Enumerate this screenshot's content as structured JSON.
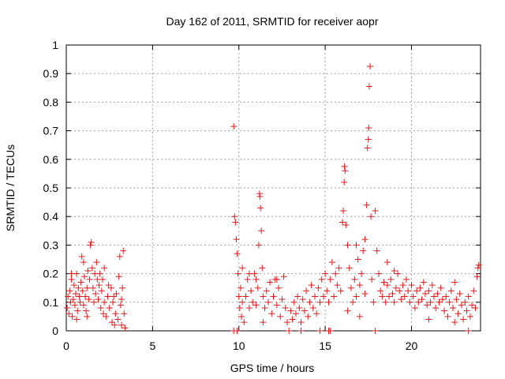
{
  "chart_data": {
    "type": "scatter",
    "title": "Day 162 of 2011, SRMTID for receiver aopr",
    "xlabel": "GPS time / hours",
    "ylabel": "SRMTID / TECUs",
    "xlim": [
      0,
      24
    ],
    "ylim": [
      0,
      1
    ],
    "xticks": [
      0,
      5,
      10,
      15,
      20
    ],
    "xtick_labels": [
      "0",
      "5",
      "10",
      "15",
      "20"
    ],
    "yticks": [
      0,
      0.1,
      0.2,
      0.3,
      0.4,
      0.5,
      0.6,
      0.7,
      0.8,
      0.9,
      1
    ],
    "ytick_labels": [
      "0",
      "0.1",
      "0.2",
      "0.3",
      "0.4",
      "0.5",
      "0.6",
      "0.7",
      "0.8",
      "0.9",
      "1"
    ],
    "grid": true,
    "marker": "+",
    "series": [
      {
        "name": "SRMTID",
        "color": "#e31a1c",
        "points": [
          [
            0.05,
            0.08
          ],
          [
            0.1,
            0.12
          ],
          [
            0.15,
            0.06
          ],
          [
            0.2,
            0.14
          ],
          [
            0.25,
            0.1
          ],
          [
            0.3,
            0.18
          ],
          [
            0.35,
            0.05
          ],
          [
            0.4,
            0.11
          ],
          [
            0.45,
            0.16
          ],
          [
            0.5,
            0.09
          ],
          [
            0.55,
            0.13
          ],
          [
            0.6,
            0.2
          ],
          [
            0.65,
            0.07
          ],
          [
            0.7,
            0.15
          ],
          [
            0.75,
            0.12
          ],
          [
            0.8,
            0.1
          ],
          [
            0.85,
            0.17
          ],
          [
            0.9,
            0.26
          ],
          [
            0.95,
            0.14
          ],
          [
            1.0,
            0.09
          ],
          [
            1.05,
            0.19
          ],
          [
            1.1,
            0.12
          ],
          [
            1.15,
            0.07
          ],
          [
            1.2,
            0.15
          ],
          [
            1.25,
            0.21
          ],
          [
            1.3,
            0.11
          ],
          [
            1.35,
            0.18
          ],
          [
            1.4,
            0.3
          ],
          [
            1.45,
            0.31
          ],
          [
            1.5,
            0.22
          ],
          [
            1.55,
            0.15
          ],
          [
            1.6,
            0.1
          ],
          [
            1.65,
            0.2
          ],
          [
            1.7,
            0.13
          ],
          [
            1.75,
            0.24
          ],
          [
            1.8,
            0.18
          ],
          [
            1.85,
            0.11
          ],
          [
            1.9,
            0.16
          ],
          [
            1.95,
            0.2
          ],
          [
            2.0,
            0.08
          ],
          [
            2.05,
            0.14
          ],
          [
            2.1,
            0.18
          ],
          [
            2.15,
            0.06
          ],
          [
            2.2,
            0.1
          ],
          [
            2.3,
            0.05
          ],
          [
            2.4,
            0.12
          ],
          [
            2.5,
            0.08
          ],
          [
            2.6,
            0.15
          ],
          [
            2.65,
            0.03
          ],
          [
            2.7,
            0.1
          ],
          [
            2.8,
            0.02
          ],
          [
            2.85,
            0.06
          ],
          [
            2.9,
            0.13
          ],
          [
            3.0,
            0.04
          ],
          [
            3.05,
            0.19
          ],
          [
            3.1,
            0.26
          ],
          [
            3.15,
            0.09
          ],
          [
            3.2,
            0.02
          ],
          [
            3.25,
            0.15
          ],
          [
            3.3,
            0.28
          ],
          [
            3.35,
            0.06
          ],
          [
            3.4,
            0.01
          ],
          [
            0.3,
            0.2
          ],
          [
            0.6,
            0.04
          ],
          [
            1.0,
            0.24
          ],
          [
            1.2,
            0.05
          ],
          [
            2.2,
            0.22
          ],
          [
            2.45,
            0.16
          ],
          [
            2.75,
            0.12
          ],
          [
            3.2,
            0.11
          ],
          [
            9.7,
            0.715
          ],
          [
            9.75,
            0.4
          ],
          [
            9.8,
            0.38
          ],
          [
            9.85,
            0.32
          ],
          [
            9.9,
            0.27
          ],
          [
            9.95,
            0.2
          ],
          [
            10.0,
            0.12
          ],
          [
            10.05,
            0.08
          ],
          [
            10.1,
            0.15
          ],
          [
            10.15,
            0.05
          ],
          [
            10.2,
            0.1
          ],
          [
            10.3,
            0.03
          ],
          [
            10.4,
            0.12
          ],
          [
            10.5,
            0.18
          ],
          [
            10.6,
            0.08
          ],
          [
            10.7,
            0.14
          ],
          [
            10.8,
            0.1
          ],
          [
            10.9,
            0.2
          ],
          [
            11.0,
            0.09
          ],
          [
            11.1,
            0.15
          ],
          [
            11.15,
            0.3
          ],
          [
            11.2,
            0.48
          ],
          [
            11.22,
            0.47
          ],
          [
            11.25,
            0.43
          ],
          [
            11.3,
            0.35
          ],
          [
            11.35,
            0.22
          ],
          [
            11.4,
            0.12
          ],
          [
            11.5,
            0.08
          ],
          [
            11.6,
            0.14
          ],
          [
            11.7,
            0.1
          ],
          [
            11.8,
            0.17
          ],
          [
            11.9,
            0.06
          ],
          [
            12.0,
            0.12
          ],
          [
            12.1,
            0.18
          ],
          [
            12.2,
            0.09
          ],
          [
            12.3,
            0.15
          ],
          [
            12.4,
            0.05
          ],
          [
            12.5,
            0.11
          ],
          [
            12.6,
            0.19
          ],
          [
            12.7,
            0.08
          ],
          [
            12.8,
            0.03
          ],
          [
            9.9,
            0.0
          ],
          [
            10.2,
            0.22
          ],
          [
            10.6,
            0.2
          ],
          [
            11.0,
            0.18
          ],
          [
            11.4,
            0.03
          ],
          [
            12.2,
            0.18
          ],
          [
            13.0,
            0.07
          ],
          [
            13.1,
            0.04
          ],
          [
            13.2,
            0.1
          ],
          [
            13.3,
            0.06
          ],
          [
            13.4,
            0.12
          ],
          [
            13.5,
            0.08
          ],
          [
            13.6,
            0.03
          ],
          [
            13.7,
            0.11
          ],
          [
            13.8,
            0.07
          ],
          [
            13.9,
            0.14
          ],
          [
            14.0,
            0.05
          ],
          [
            14.1,
            0.1
          ],
          [
            14.2,
            0.16
          ],
          [
            14.3,
            0.08
          ],
          [
            14.4,
            0.12
          ],
          [
            14.5,
            0.06
          ],
          [
            14.6,
            0.15
          ],
          [
            14.7,
            0.1
          ],
          [
            14.8,
            0.18
          ],
          [
            14.9,
            0.12
          ],
          [
            15.0,
            0.2
          ],
          [
            15.1,
            0.14
          ],
          [
            15.2,
            0.1
          ],
          [
            15.3,
            0.18
          ],
          [
            15.4,
            0.24
          ],
          [
            15.5,
            0.12
          ],
          [
            15.6,
            0.2
          ],
          [
            15.7,
            0.16
          ],
          [
            15.8,
            0.22
          ],
          [
            15.9,
            0.14
          ],
          [
            16.0,
            0.38
          ],
          [
            16.05,
            0.42
          ],
          [
            16.1,
            0.52
          ],
          [
            16.12,
            0.575
          ],
          [
            16.15,
            0.56
          ],
          [
            16.2,
            0.37
          ],
          [
            16.3,
            0.3
          ],
          [
            16.4,
            0.22
          ],
          [
            16.5,
            0.15
          ],
          [
            16.6,
            0.1
          ],
          [
            16.7,
            0.18
          ],
          [
            16.8,
            0.12
          ],
          [
            16.9,
            0.25
          ],
          [
            17.0,
            0.16
          ],
          [
            17.1,
            0.2
          ],
          [
            17.2,
            0.28
          ],
          [
            17.3,
            0.32
          ],
          [
            17.4,
            0.44
          ],
          [
            17.45,
            0.64
          ],
          [
            17.5,
            0.67
          ],
          [
            17.52,
            0.71
          ],
          [
            17.55,
            0.855
          ],
          [
            17.6,
            0.925
          ],
          [
            17.65,
            0.4
          ],
          [
            17.7,
            0.18
          ],
          [
            17.8,
            0.1
          ],
          [
            17.9,
            0.42
          ],
          [
            18.0,
            0.28
          ],
          [
            18.1,
            0.2
          ],
          [
            18.2,
            0.14
          ],
          [
            18.3,
            0.12
          ],
          [
            18.4,
            0.17
          ],
          [
            18.5,
            0.1
          ],
          [
            18.6,
            0.16
          ],
          [
            18.7,
            0.12
          ],
          [
            18.8,
            0.18
          ],
          [
            18.9,
            0.13
          ],
          [
            19.0,
            0.1
          ],
          [
            19.1,
            0.15
          ],
          [
            19.2,
            0.2
          ],
          [
            19.3,
            0.14
          ],
          [
            19.4,
            0.11
          ],
          [
            19.5,
            0.16
          ],
          [
            19.6,
            0.12
          ],
          [
            19.7,
            0.18
          ],
          [
            19.8,
            0.14
          ],
          [
            19.9,
            0.1
          ],
          [
            20.0,
            0.16
          ],
          [
            20.1,
            0.12
          ],
          [
            20.2,
            0.08
          ],
          [
            20.3,
            0.14
          ],
          [
            20.4,
            0.1
          ],
          [
            20.5,
            0.15
          ],
          [
            20.6,
            0.11
          ],
          [
            20.7,
            0.17
          ],
          [
            20.8,
            0.13
          ],
          [
            20.9,
            0.09
          ],
          [
            21.0,
            0.14
          ],
          [
            21.1,
            0.1
          ],
          [
            21.2,
            0.16
          ],
          [
            21.3,
            0.12
          ],
          [
            21.4,
            0.08
          ],
          [
            21.5,
            0.13
          ],
          [
            21.6,
            0.1
          ],
          [
            21.7,
            0.15
          ],
          [
            21.8,
            0.11
          ],
          [
            21.9,
            0.07
          ],
          [
            22.0,
            0.12
          ],
          [
            22.1,
            0.05
          ],
          [
            22.2,
            0.1
          ],
          [
            22.3,
            0.14
          ],
          [
            22.4,
            0.08
          ],
          [
            22.5,
            0.03
          ],
          [
            22.6,
            0.11
          ],
          [
            22.7,
            0.06
          ],
          [
            22.8,
            0.13
          ],
          [
            22.9,
            0.09
          ],
          [
            23.0,
            0.04
          ],
          [
            23.1,
            0.1
          ],
          [
            23.2,
            0.07
          ],
          [
            23.3,
            0.12
          ],
          [
            23.4,
            0.05
          ],
          [
            23.5,
            0.09
          ],
          [
            23.6,
            0.14
          ],
          [
            23.7,
            0.08
          ],
          [
            23.8,
            0.19
          ],
          [
            23.85,
            0.22
          ],
          [
            23.9,
            0.23
          ],
          [
            15.2,
            0.0
          ],
          [
            16.3,
            0.07
          ],
          [
            16.8,
            0.3
          ],
          [
            17.0,
            0.05
          ],
          [
            17.3,
            0.13
          ],
          [
            18.6,
            0.24
          ],
          [
            19.0,
            0.21
          ],
          [
            21.0,
            0.04
          ],
          [
            22.5,
            0.17
          ],
          [
            23.3,
            0.0
          ],
          [
            12.9,
            0.0
          ],
          [
            13.6,
            0.0
          ],
          [
            14.7,
            0.0
          ],
          [
            15.3,
            0.0
          ],
          [
            17.9,
            0.0
          ],
          [
            9.7,
            0.0
          ]
        ]
      }
    ]
  }
}
